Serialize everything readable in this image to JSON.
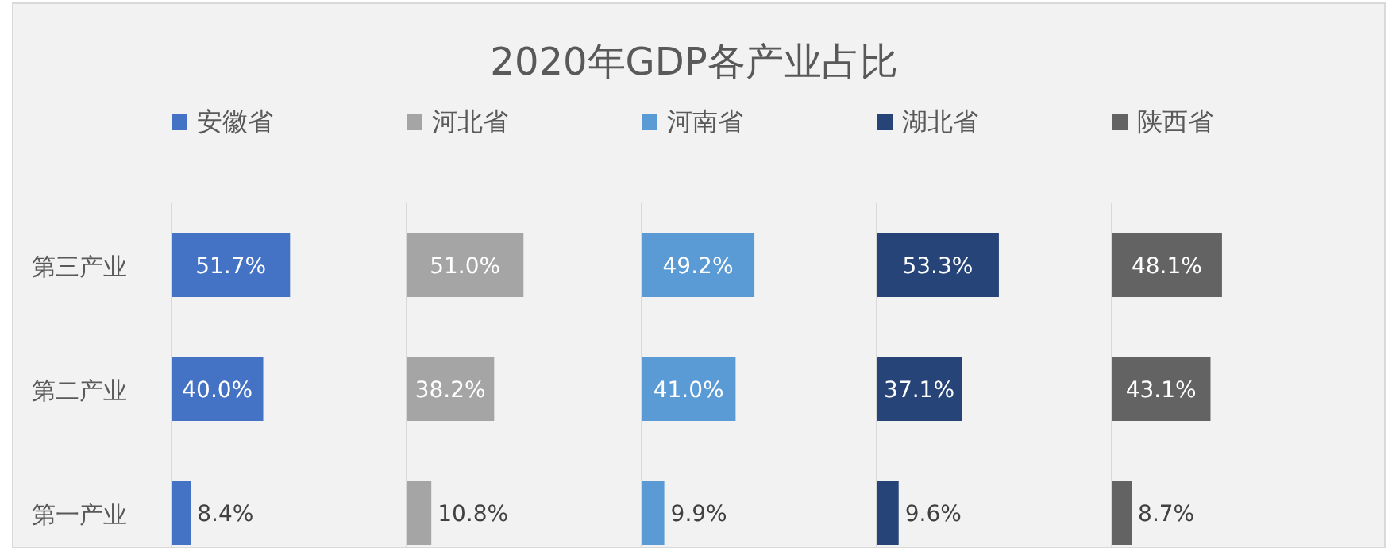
{
  "chart_data": [
    {
      "type": "bar",
      "orientation": "horizontal",
      "legend": "top",
      "tick_labels": "y",
      "categories": [
        "第三产业",
        "第二产业",
        "第一产业"
      ],
      "series": [
        {
          "name": "安徽省",
          "color": "#4472c4",
          "values": [
            51.7,
            40.0,
            8.4
          ],
          "value_labels": [
            "51.7%",
            "40.0%",
            "8.4%"
          ]
        }
      ]
    },
    {
      "type": "bar",
      "orientation": "horizontal",
      "legend": "top",
      "categories": [
        null,
        null,
        null
      ],
      "series": [
        {
          "name": "河北省",
          "color": "#a5a5a5",
          "values": [
            51.0,
            38.2,
            10.8
          ],
          "value_labels": [
            "51.0%",
            "38.2%",
            "10.8%"
          ]
        }
      ]
    },
    {
      "type": "bar",
      "title": "2020年GDP各产业占比",
      "orientation": "horizontal",
      "legend": "top",
      "categories": [
        null,
        null,
        null
      ],
      "series": [
        {
          "name": "河南省",
          "color": "#5b9bd5",
          "values": [
            49.2,
            41.0,
            9.9
          ],
          "value_labels": [
            "49.2%",
            "41.0%",
            "9.9%"
          ]
        }
      ]
    },
    {
      "type": "bar",
      "orientation": "horizontal",
      "legend": "top",
      "categories": [
        null,
        null,
        null
      ],
      "series": [
        {
          "name": "湖北省",
          "color": "#264478",
          "values": [
            53.3,
            37.1,
            9.6
          ],
          "value_labels": [
            "53.3%",
            "37.1%",
            "9.6%"
          ]
        }
      ]
    },
    {
      "type": "bar",
      "orientation": "horizontal",
      "legend": "top",
      "categories": [
        null,
        null,
        null
      ],
      "series": [
        {
          "name": "陕西省",
          "color": "#636363",
          "values": [
            48.1,
            43.1,
            8.7
          ],
          "value_labels": [
            "48.1%",
            "43.1%",
            "8.7%"
          ]
        }
      ]
    }
  ]
}
